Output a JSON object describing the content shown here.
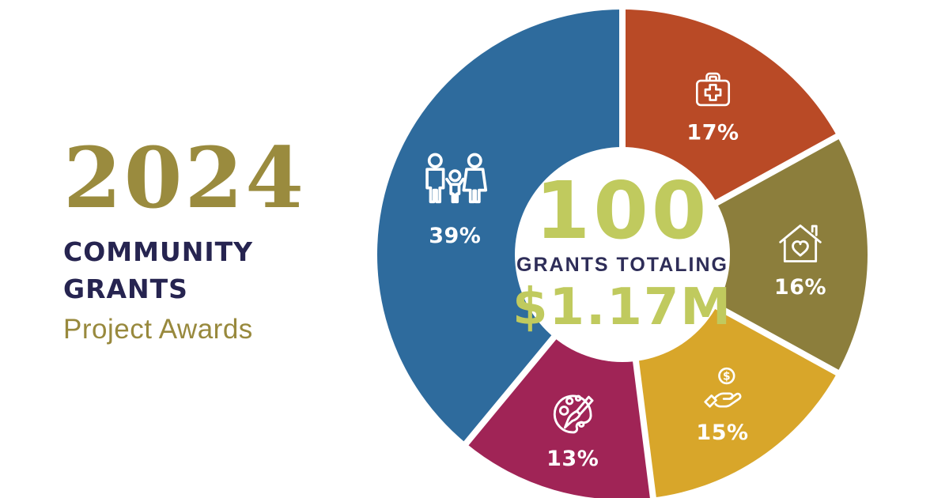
{
  "page": {
    "background_color": "#ffffff"
  },
  "header": {
    "year": "2024",
    "title_lines": [
      "COMMUNITY",
      "GRANTS"
    ],
    "subtitle": "Project Awards",
    "colors": {
      "year": "#9a8b3e",
      "title": "#262450",
      "subtitle": "#98893d"
    }
  },
  "chart_data": {
    "type": "pie",
    "variant": "donut",
    "title": "2024 Community Grants Project Awards",
    "start_angle_deg": 0,
    "direction": "clockwise",
    "inner_radius_ratio": 0.44,
    "segment_gap_color": "#ffffff",
    "label_color": "#ffffff",
    "legend": "none",
    "center_label": {
      "value": "100",
      "value_color": "#c0ca5e",
      "caption": "GRANTS TOTALING",
      "caption_color": "#2e2d58",
      "amount": "$1.17M",
      "amount_color": "#c0ca5e"
    },
    "segments": [
      {
        "label": "17%",
        "value_pct": 17,
        "color": "#b94a26",
        "icon": "first-aid-kit-icon",
        "icon_size": 68
      },
      {
        "label": "16%",
        "value_pct": 16,
        "color": "#8c7e3c",
        "icon": "house-heart-icon",
        "icon_size": 72
      },
      {
        "label": "15%",
        "value_pct": 15,
        "color": "#d8a62a",
        "icon": "hand-dollar-icon",
        "icon_size": 68
      },
      {
        "label": "13%",
        "value_pct": 13,
        "color": "#a02456",
        "icon": "palette-icon",
        "icon_size": 74
      },
      {
        "label": "39%",
        "value_pct": 39,
        "color": "#2e6b9d",
        "icon": "family-icon",
        "icon_size": 94
      }
    ]
  }
}
